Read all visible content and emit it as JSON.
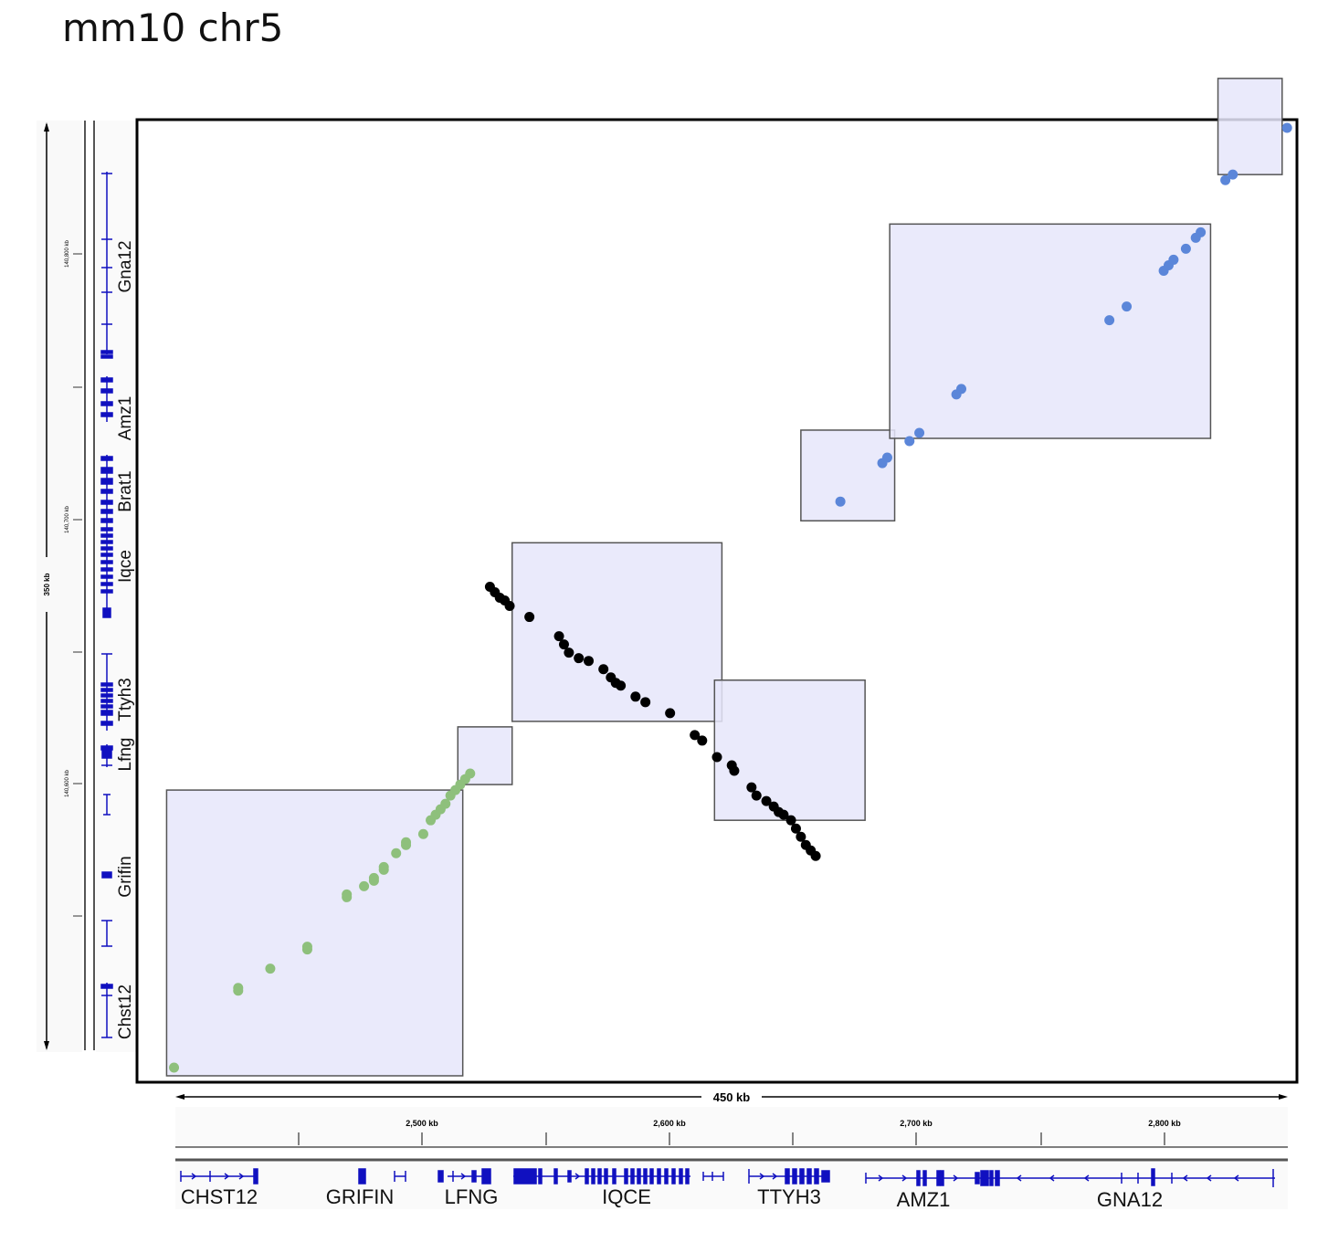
{
  "title": "mm10 chr5",
  "vertical_ruler": {
    "span_label": "350 kb",
    "tick_labels": [
      "140,800 kb",
      "140,700 kb",
      "140,600 kb"
    ]
  },
  "horizontal_ruler": {
    "span_label": "450 kb",
    "tick_labels": [
      "2,500 kb",
      "2,600 kb",
      "2,700 kb",
      "2,800 kb"
    ]
  },
  "vertical_genes": [
    "Gna12",
    "Amz1",
    "Brat1",
    "Iqce",
    "Ttyh3",
    "Lfng",
    "Grifin",
    "Chst12"
  ],
  "horizontal_genes": [
    "CHST12",
    "GRIFIN",
    "LFNG",
    "IQCE",
    "TTYH3",
    "AMZ1",
    "GNA12"
  ],
  "colors": {
    "green_segment": "#8ec07c",
    "black_segment": "#000000",
    "blue_segment": "#5b86d9",
    "box_fill": "#e6e6fa",
    "gene_track": "#1010c0"
  },
  "chart_data": {
    "type": "scatter",
    "series": [
      {
        "color": "#8ec07c",
        "points": [
          [
            2415,
            140535
          ],
          [
            2441,
            140563
          ],
          [
            2441,
            140564
          ],
          [
            2454,
            140571
          ],
          [
            2469,
            140578
          ],
          [
            2469,
            140579
          ],
          [
            2485,
            140597
          ],
          [
            2485,
            140598
          ],
          [
            2492,
            140601
          ],
          [
            2496,
            140603
          ],
          [
            2496,
            140604
          ],
          [
            2500,
            140607
          ],
          [
            2500,
            140608
          ],
          [
            2505,
            140613
          ],
          [
            2509,
            140616
          ],
          [
            2509,
            140617
          ],
          [
            2516,
            140620
          ],
          [
            2519,
            140625
          ],
          [
            2521,
            140627
          ],
          [
            2523,
            140629
          ],
          [
            2525,
            140631
          ],
          [
            2527,
            140634
          ],
          [
            2529,
            140636
          ],
          [
            2531,
            140638
          ],
          [
            2533,
            140640
          ],
          [
            2535,
            140642
          ]
        ]
      },
      {
        "color": "#000000",
        "points": [
          [
            2543,
            140710
          ],
          [
            2545,
            140708
          ],
          [
            2547,
            140706
          ],
          [
            2549,
            140705
          ],
          [
            2551,
            140703
          ],
          [
            2559,
            140699
          ],
          [
            2571,
            140692
          ],
          [
            2573,
            140689
          ],
          [
            2575,
            140686
          ],
          [
            2579,
            140684
          ],
          [
            2583,
            140683
          ],
          [
            2589,
            140680
          ],
          [
            2592,
            140677
          ],
          [
            2594,
            140675
          ],
          [
            2596,
            140674
          ],
          [
            2602,
            140670
          ],
          [
            2606,
            140668
          ],
          [
            2616,
            140664
          ],
          [
            2626,
            140656
          ],
          [
            2629,
            140654
          ],
          [
            2635,
            140648
          ],
          [
            2641,
            140645
          ],
          [
            2642,
            140643
          ],
          [
            2649,
            140637
          ],
          [
            2651,
            140634
          ],
          [
            2655,
            140632
          ],
          [
            2658,
            140630
          ],
          [
            2660,
            140628
          ],
          [
            2662,
            140627
          ],
          [
            2665,
            140625
          ],
          [
            2667,
            140622
          ],
          [
            2669,
            140619
          ],
          [
            2671,
            140616
          ],
          [
            2673,
            140614
          ],
          [
            2675,
            140612
          ]
        ]
      },
      {
        "color": "#5b86d9",
        "points": [
          [
            2685,
            140741
          ],
          [
            2702,
            140755
          ],
          [
            2704,
            140757
          ],
          [
            2713,
            140763
          ],
          [
            2717,
            140766
          ],
          [
            2732,
            140780
          ],
          [
            2734,
            140782
          ],
          [
            2794,
            140807
          ],
          [
            2801,
            140812
          ],
          [
            2816,
            140825
          ],
          [
            2818,
            140827
          ],
          [
            2820,
            140829
          ],
          [
            2825,
            140833
          ],
          [
            2829,
            140837
          ],
          [
            2831,
            140839
          ],
          [
            2841,
            140858
          ],
          [
            2844,
            140860
          ],
          [
            2866,
            140877
          ]
        ]
      }
    ],
    "domains": [
      [
        2412,
        2532,
        140532,
        140636
      ],
      [
        2530,
        2552,
        140638,
        140659
      ],
      [
        2552,
        2637,
        140661,
        140726
      ],
      [
        2634,
        2695,
        140625,
        140676
      ],
      [
        2669,
        2707,
        140734,
        140767
      ],
      [
        2705,
        2835,
        140764,
        140842
      ],
      [
        2838,
        2864,
        140860,
        140895
      ]
    ],
    "x_range": [
      2400,
      2870
    ],
    "y_range": [
      140530,
      140880
    ]
  }
}
